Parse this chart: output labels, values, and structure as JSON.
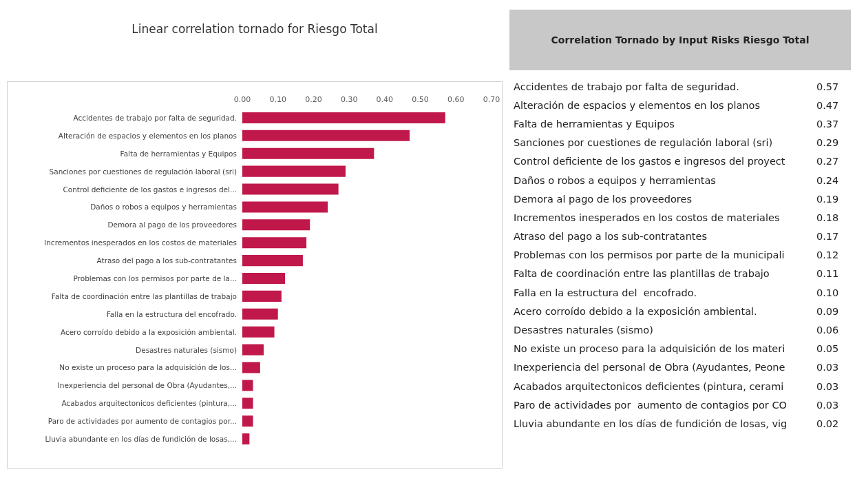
{
  "chart_data": [
    {
      "type": "bar",
      "orientation": "horizontal",
      "title": "Linear correlation tornado for Riesgo Total",
      "color": "#c0184a",
      "grid": false,
      "categories": [
        "Accidentes de trabajo por falta de seguridad.",
        "Alteración de espacios y elementos en los planos",
        "Falta de herramientas y Equipos",
        "Sanciones por cuestiones de regulación laboral (sri)",
        "Control deficiente de los gastos e ingresos del...",
        "Daños o robos a equipos y herramientas",
        "Demora al pago de los proveedores",
        "Incrementos inesperados en los costos de materiales",
        "Atraso del pago a los sub-contratantes",
        "Problemas con los permisos por parte de la...",
        "Falta de coordinación entre las plantillas de trabajo",
        "Falla en la estructura del encofrado.",
        "Acero corroído debido a la exposición ambiental.",
        "Desastres naturales (sismo)",
        "No existe un proceso para la adquisición de los...",
        "Inexperiencia del personal de Obra (Ayudantes,...",
        "Acabados arquitectonicos deficientes (pintura,...",
        "Paro de actividades por aumento de contagios por...",
        "Lluvia abundante en los días de fundición de losas,..."
      ],
      "values": [
        0.57,
        0.47,
        0.37,
        0.29,
        0.27,
        0.24,
        0.19,
        0.18,
        0.17,
        0.12,
        0.11,
        0.1,
        0.09,
        0.06,
        0.05,
        0.03,
        0.03,
        0.03,
        0.02
      ],
      "xlim": [
        0,
        0.7
      ],
      "xticks": [
        {
          "value": 0,
          "label": "0.00"
        },
        {
          "value": 0.1,
          "label": "0.10"
        },
        {
          "value": 0.2,
          "label": "0.20"
        },
        {
          "value": 0.3,
          "label": "0.30"
        },
        {
          "value": 0.4,
          "label": "0.40"
        },
        {
          "value": 0.5,
          "label": "0.50"
        },
        {
          "value": 0.6,
          "label": "0.60"
        },
        {
          "value": 0.7,
          "label": "0.70"
        }
      ]
    },
    {
      "type": "other",
      "title": "Correlation Tornado by Input Risks Riesgo Total",
      "categories": [
        "Accidentes de trabajo por falta de seguridad.",
        "Alteración de espacios y elementos en los planos",
        "Falta de herramientas y Equipos",
        "Sanciones por cuestiones de regulación laboral (sri)",
        "Control deficiente de los gastos e ingresos del proyect",
        "Daños o robos a equipos y herramientas",
        "Demora al pago de los proveedores",
        "Incrementos inesperados en los costos de materiales",
        "Atraso del pago a los sub-contratantes",
        "Problemas con los permisos por parte de la municipali",
        "Falta de coordinación entre las plantillas de trabajo",
        "Falla en la estructura del  encofrado.",
        "Acero corroído debido a la exposición ambiental.",
        "Desastres naturales (sismo)",
        "No existe un proceso para la adquisición de los materi",
        "Inexperiencia del personal de Obra (Ayudantes, Peone",
        "Acabados arquitectonicos deficientes (pintura, cerami",
        "Paro de actividades por  aumento de contagios por CO",
        "Lluvia abundante en los días de fundición de losas, vig"
      ],
      "value_labels": [
        "0.57",
        "0.47",
        "0.37",
        "0.29",
        "0.27",
        "0.24",
        "0.19",
        "0.18",
        "0.17",
        "0.12",
        "0.11",
        "0.10",
        "0.09",
        "0.06",
        "0.05",
        "0.03",
        "0.03",
        "0.03",
        "0.02"
      ]
    }
  ]
}
